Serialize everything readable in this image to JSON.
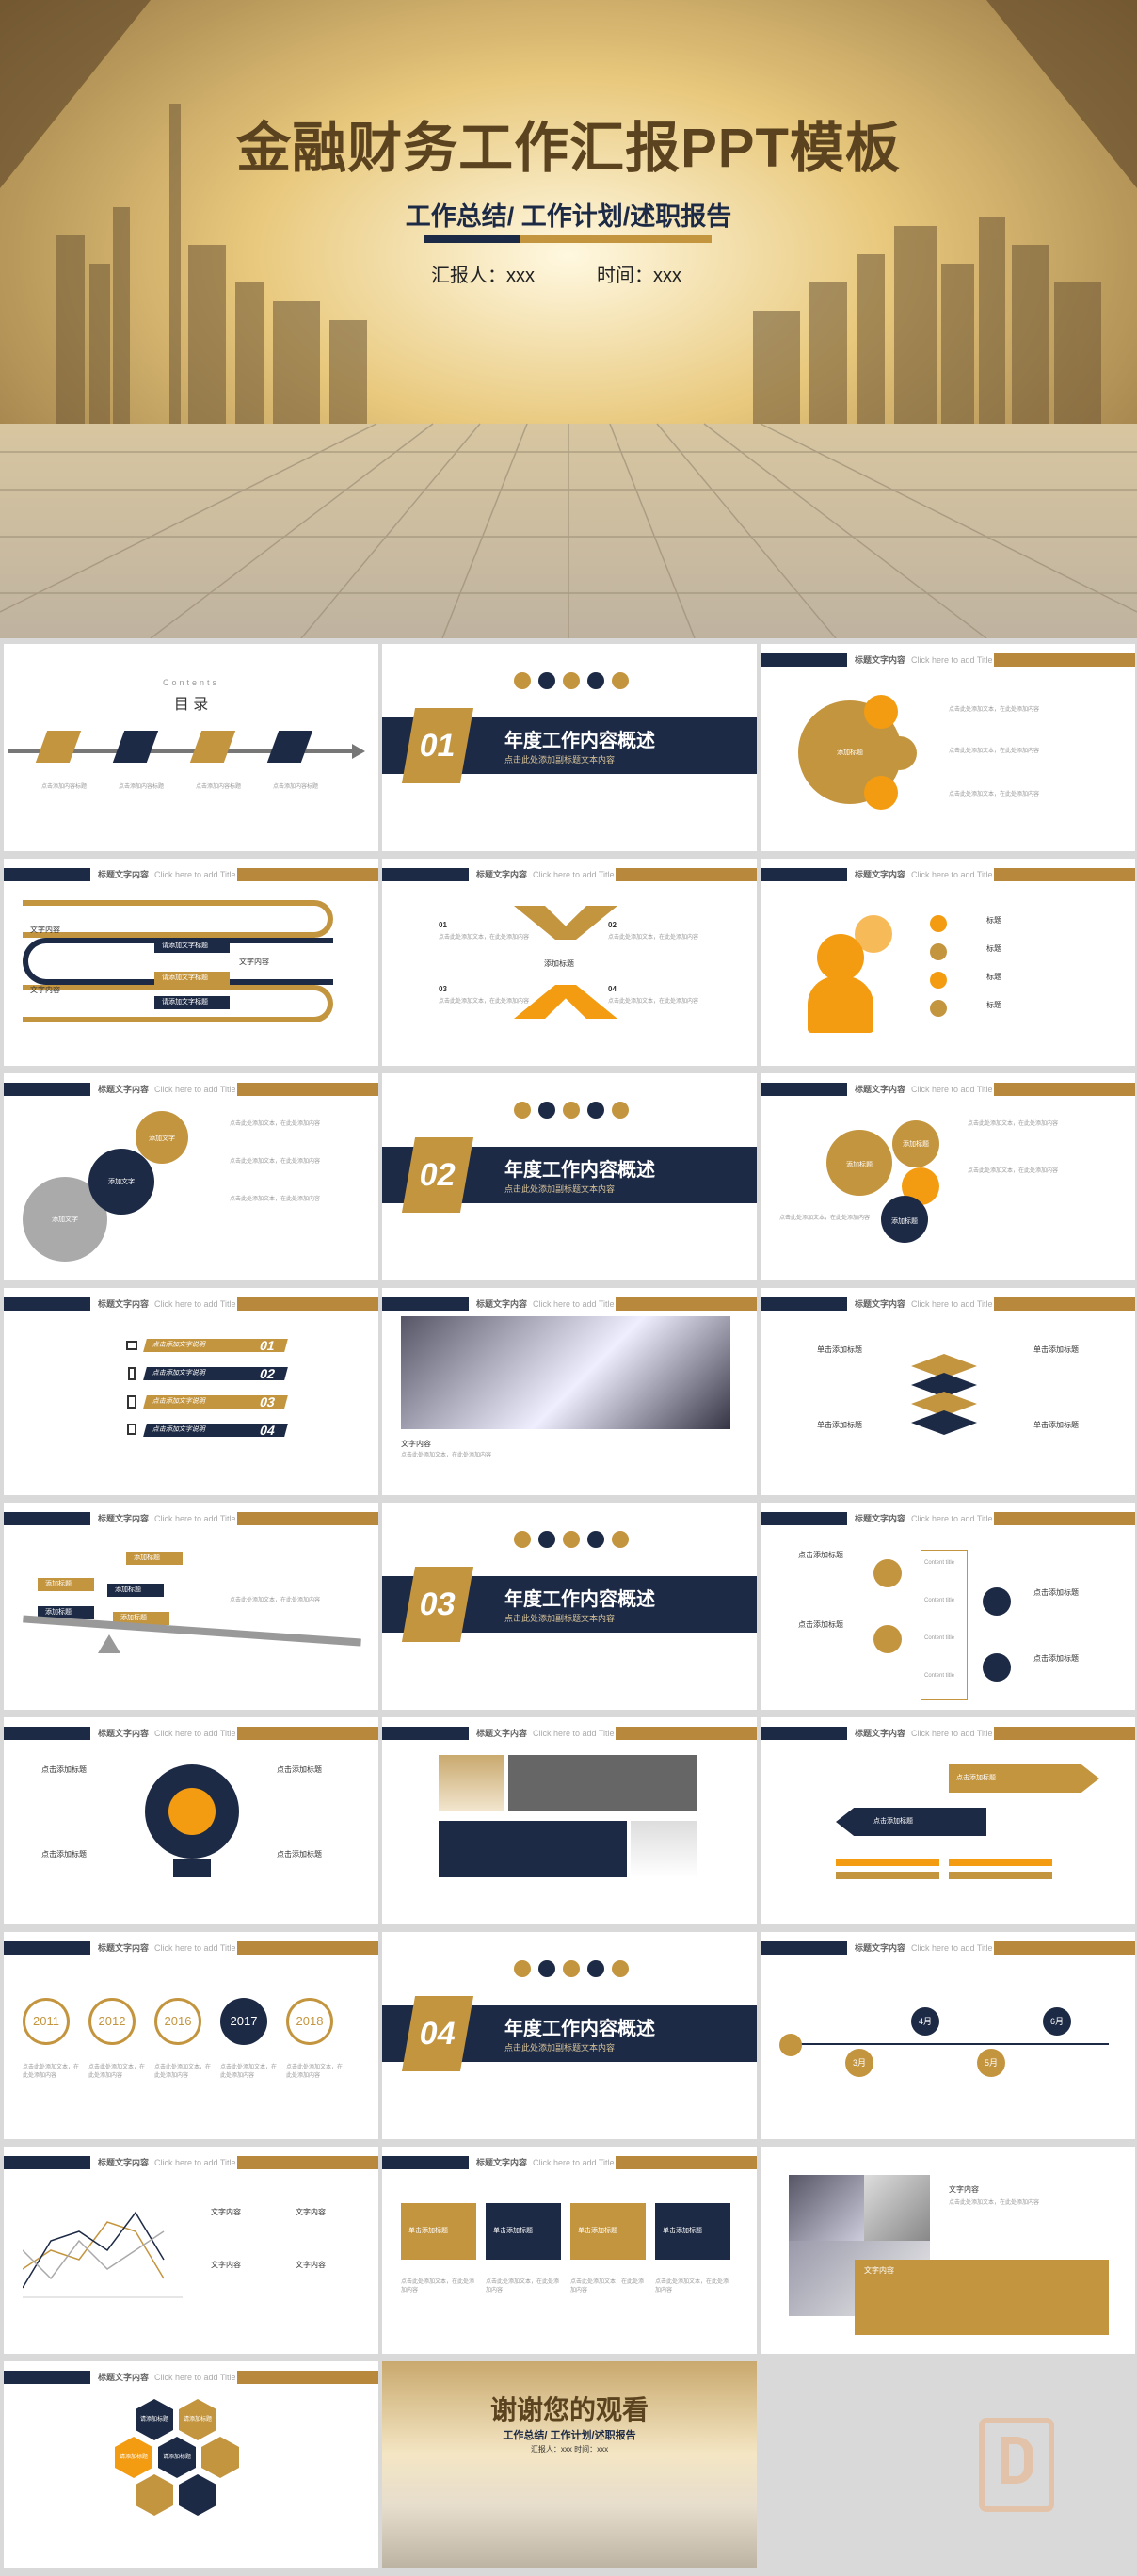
{
  "cover": {
    "title": "金融财务工作汇报PPT模板",
    "subtitle": "工作总结/ 工作计划/述职报告",
    "reporter": "汇报人：xxx",
    "time": "时间：xxx"
  },
  "header": {
    "title": "标题文字内容",
    "en": "Click here to add Title"
  },
  "contents": {
    "en": "Contents",
    "title": "目 录",
    "items": [
      "点击添加内容标题",
      "点击添加内容标题",
      "点击添加内容标题",
      "点击添加内容标题"
    ]
  },
  "sections": [
    {
      "num": "01",
      "title": "年度工作内容概述",
      "sub": "点击此处添加副标题文本内容"
    },
    {
      "num": "02",
      "title": "年度工作内容概述",
      "sub": "点击此处添加副标题文本内容"
    },
    {
      "num": "03",
      "title": "年度工作内容概述",
      "sub": "点击此处添加副标题文本内容"
    },
    {
      "num": "04",
      "title": "年度工作内容概述",
      "sub": "点击此处添加副标题文本内容"
    }
  ],
  "common": {
    "add_title": "添加标题",
    "add_text": "添加文字",
    "text_content": "文字内容",
    "click_add_title": "点击添加标题",
    "single_add_title": "单击添加标题",
    "add_content": "添加内容",
    "title_short": "标题",
    "input_title": "输入标题",
    "content_title": "Content title",
    "body": "点击此处添加文本，在此处添加内容"
  },
  "slide4": {
    "labels": [
      "文字内容",
      "文字内容",
      "文字内容"
    ],
    "bars": [
      "请添加文字标题",
      "请添加文字标题",
      "请添加文字标题"
    ]
  },
  "slide5": {
    "nums": [
      "01",
      "02",
      "03",
      "04"
    ]
  },
  "slide9": {
    "nums": [
      "01",
      "02",
      "03",
      "04"
    ],
    "bars": [
      "点击添加文字说明",
      "点击添加文字说明",
      "点击添加文字说明",
      "点击添加文字说明"
    ]
  },
  "slide18": {
    "years": [
      "2011",
      "2012",
      "2016",
      "2017",
      "2018"
    ]
  },
  "slide21": {
    "months": [
      "3月",
      "4月",
      "5月",
      "6月"
    ]
  },
  "slide20": {
    "items": [
      "请添加标题",
      "请添加标题",
      "请添加标题",
      "请添加标题"
    ]
  },
  "thanks": {
    "title": "谢谢您的观看",
    "subtitle": "工作总结/ 工作计划/述职报告",
    "meta": "汇报人：xxx    时间：xxx"
  },
  "colors": {
    "navy": "#1d2a45",
    "gold": "#c4953f",
    "orange": "#f39c12"
  }
}
